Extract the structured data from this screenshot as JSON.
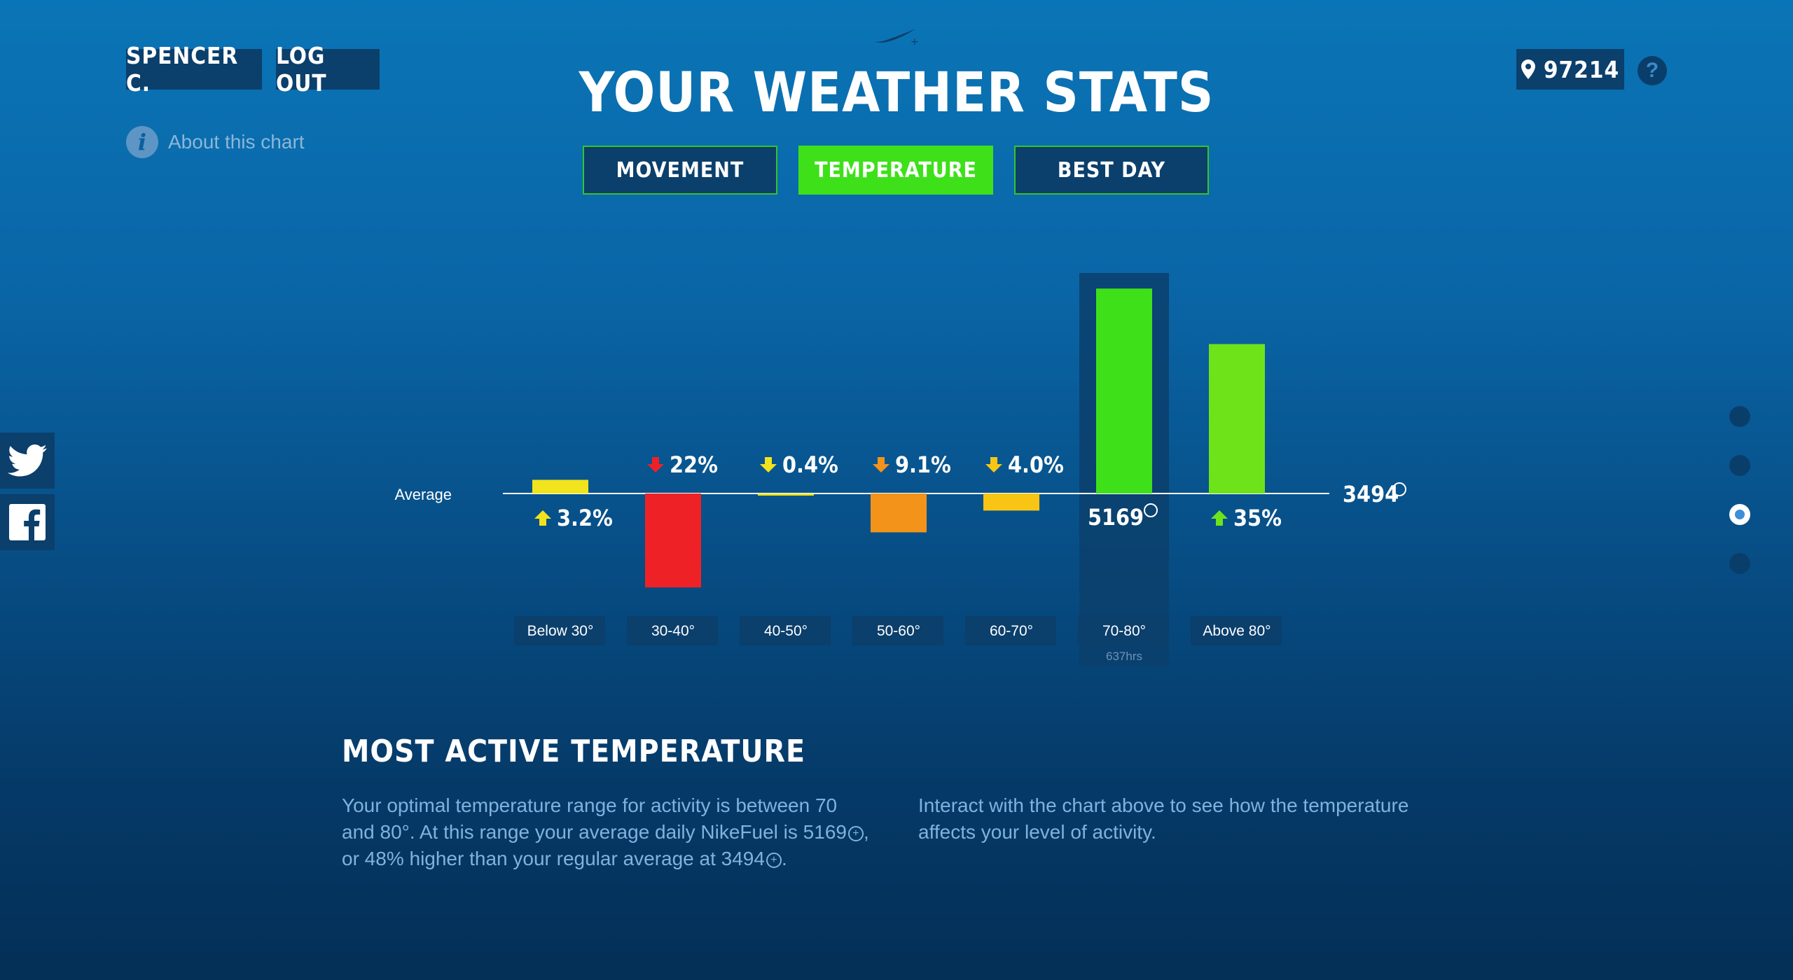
{
  "header": {
    "user_label": "SPENCER C.",
    "logout_label": "LOG OUT",
    "title": "YOUR WEATHER STATS",
    "zip": "97214",
    "help_label": "?",
    "about_label": "About this chart"
  },
  "tabs": [
    {
      "label": "MOVEMENT",
      "active": false
    },
    {
      "label": "TEMPERATURE",
      "active": true
    },
    {
      "label": "BEST DAY",
      "active": false
    }
  ],
  "social": [
    "twitter-icon",
    "facebook-icon"
  ],
  "pager": {
    "count": 4,
    "active_index": 2
  },
  "chart_data": {
    "type": "bar",
    "baseline_label": "Average",
    "average_value": "3494",
    "categories": [
      "Below 30°",
      "30-40°",
      "40-50°",
      "50-60°",
      "60-70°",
      "70-80°",
      "Above 80°"
    ],
    "percent_change": [
      3.2,
      -22,
      -0.4,
      -9.1,
      -4.0,
      48,
      35
    ],
    "labels": [
      "3.2%",
      "22%",
      "0.4%",
      "9.1%",
      "4.0%",
      "5169",
      "35%"
    ],
    "directions": [
      "up",
      "down",
      "down",
      "down",
      "down",
      "up",
      "up"
    ],
    "colors": [
      "#f2e41c",
      "#ee2226",
      "#f2e41c",
      "#f3931a",
      "#f8c515",
      "#3ee01a",
      "#6ee31a"
    ],
    "highlight_index": 5,
    "highlight_value": "5169",
    "highlight_sub": "637hrs"
  },
  "summary": {
    "title": "MOST ACTIVE TEMPERATURE",
    "left_1": "Your optimal temperature range for activity is between 70 and 80°. At this range your average daily NikeFuel is 5169",
    "left_2": ", or 48% higher than your regular average at 3494",
    "left_3": ".",
    "right": "Interact with the chart above to see how the temperature affects your level of activity."
  }
}
